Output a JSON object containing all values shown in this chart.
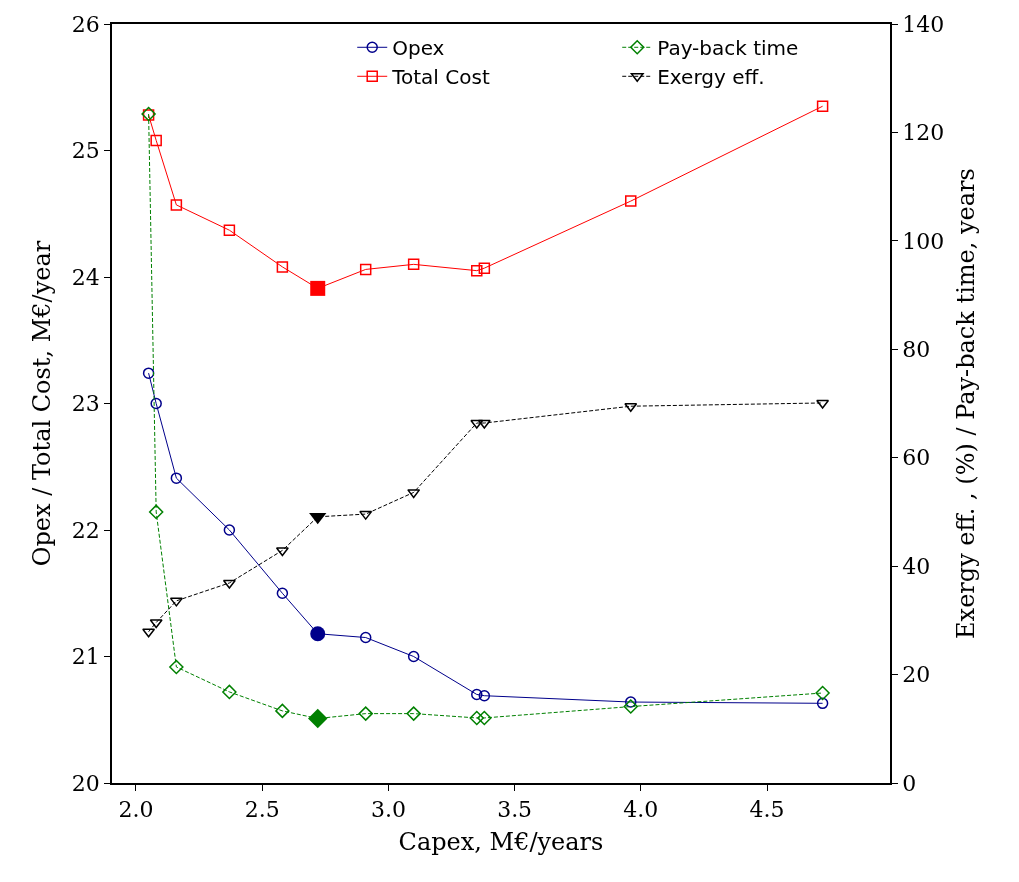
{
  "chart_data": {
    "type": "line",
    "xlabel": "Capex, M€/years",
    "ylabel": "Opex / Total Cost, M€/year",
    "y2label": "Exergy eff. , (%) / Pay-back time, years",
    "x": [
      2.05,
      2.08,
      2.16,
      2.37,
      2.58,
      2.72,
      2.91,
      3.1,
      3.35,
      3.38,
      3.96,
      4.72
    ],
    "xlim": [
      1.905,
      4.987
    ],
    "xticks": [
      {
        "value": 2,
        "label": "2.0"
      },
      {
        "value": 2.5,
        "label": "2.5"
      },
      {
        "value": 3,
        "label": "3.0"
      },
      {
        "value": 3.5,
        "label": "3.5"
      },
      {
        "value": 4,
        "label": "4.0"
      },
      {
        "value": 4.5,
        "label": "4.5"
      }
    ],
    "ylim": [
      20,
      26
    ],
    "yticks": [
      20,
      21,
      22,
      23,
      24,
      25,
      26
    ],
    "y2lim": [
      0,
      140
    ],
    "y2ticks": [
      0,
      20,
      40,
      60,
      80,
      100,
      120,
      140
    ],
    "legend": "top right",
    "series": [
      {
        "name": "Opex",
        "color": "#00008b",
        "marker": "circle",
        "line_style": "solid",
        "values": [
          23.24,
          23.0,
          22.41,
          22.0,
          21.5,
          21.18,
          21.15,
          21.0,
          20.7,
          20.69,
          20.64,
          20.63
        ]
      },
      {
        "name": "Pay-back time",
        "color": "#008000",
        "marker": "diamond",
        "line_style": "dashed",
        "axis": "y2",
        "values": [
          123.4,
          50.0,
          21.4,
          16.8,
          13.3,
          11.9,
          12.8,
          12.8,
          12.0,
          12.0,
          14.1,
          16.6
        ]
      },
      {
        "name": "Total Cost",
        "color": "#ff0000",
        "marker": "square",
        "line_style": "solid",
        "values": [
          25.28,
          25.08,
          24.57,
          24.37,
          24.08,
          23.91,
          24.06,
          24.1,
          24.05,
          24.07,
          24.6,
          25.35
        ]
      },
      {
        "name": "Exergy eff.",
        "color": "#000000",
        "marker": "triangle",
        "line_style": "dashed",
        "axis": "y2",
        "values": [
          27.9,
          29.6,
          33.6,
          36.9,
          42.9,
          49.1,
          49.6,
          53.6,
          66.4,
          66.4,
          69.5,
          70.1
        ]
      },
      {
        "color": "#00008b",
        "type": "scatter",
        "marker": "circle",
        "values": [
          null,
          null,
          null,
          null,
          null,
          21.18,
          null,
          null,
          null,
          null,
          null,
          null
        ]
      },
      {
        "color": "#ff0000",
        "type": "scatter",
        "marker": "square",
        "values": [
          null,
          null,
          null,
          null,
          null,
          23.91,
          null,
          null,
          null,
          null,
          null,
          null
        ]
      },
      {
        "color": "#008000",
        "type": "scatter",
        "marker": "diamond",
        "axis": "y2",
        "values": [
          null,
          null,
          null,
          null,
          null,
          11.9,
          null,
          null,
          null,
          null,
          null,
          null
        ]
      },
      {
        "color": "#000000",
        "type": "scatter",
        "marker": "triangle",
        "axis": "y2",
        "values": [
          null,
          null,
          null,
          null,
          null,
          49.1,
          null,
          null,
          null,
          null,
          null,
          null
        ]
      }
    ]
  }
}
